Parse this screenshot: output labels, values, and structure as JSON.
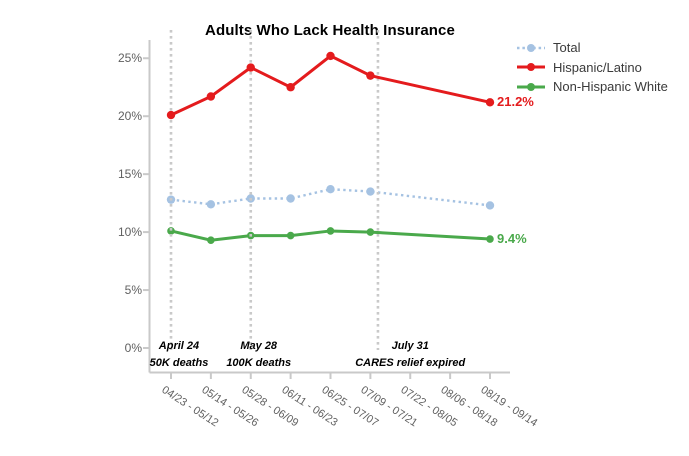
{
  "chart_data": {
    "type": "line",
    "title": "Adults Who Lack Health Insurance",
    "categories": [
      "04/23 - 05/12",
      "05/14 - 05/26",
      "05/28 - 06/09",
      "06/11 - 06/23",
      "06/25 - 07/07",
      "07/09 - 07/21",
      "07/22 - 08/05",
      "08/06 - 08/18",
      "08/19 - 09/14"
    ],
    "y_tick_labels": [
      "0%",
      "5%",
      "10%",
      "15%",
      "20%",
      "25%"
    ],
    "y_tick_values": [
      0,
      5,
      10,
      15,
      20,
      25
    ],
    "ylim": [
      0,
      27
    ],
    "grid": false,
    "legend_position": "top-right",
    "series": [
      {
        "name": "Total",
        "color": "#a5c2e2",
        "line_style": "dotted",
        "x_indices": [
          0,
          1,
          2,
          3,
          4,
          5,
          8
        ],
        "values": [
          12.8,
          12.4,
          12.9,
          12.9,
          13.7,
          13.5,
          12.3
        ]
      },
      {
        "name": "Hispanic/Latino",
        "color": "#e41b1d",
        "line_style": "solid",
        "x_indices": [
          0,
          1,
          2,
          3,
          4,
          5,
          8
        ],
        "values": [
          20.1,
          21.7,
          24.2,
          22.5,
          25.2,
          23.5,
          21.2
        ],
        "end_label": "21.2%"
      },
      {
        "name": "Non-Hispanic White",
        "color": "#4aa94b",
        "line_style": "solid",
        "x_indices": [
          0,
          1,
          2,
          3,
          4,
          5,
          8
        ],
        "values": [
          10.1,
          9.3,
          9.7,
          9.7,
          10.1,
          10.0,
          9.4
        ],
        "end_label": "9.4%"
      }
    ],
    "event_lines": [
      {
        "x_index": 0,
        "label_x_index": 0.2,
        "label_line1": "April 24",
        "label_line2": "50K deaths"
      },
      {
        "x_index": 2,
        "label_x_index": 2.2,
        "label_line1": "May 28",
        "label_line2": "100K deaths"
      },
      {
        "x_index": 5.19,
        "label_x_index": 6.0,
        "label_line1": "July 31",
        "label_line2": "CARES relief expired"
      }
    ]
  }
}
